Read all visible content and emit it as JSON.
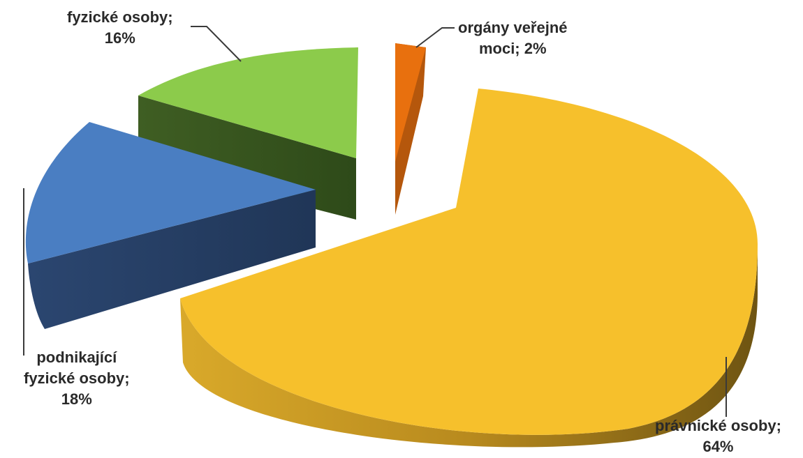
{
  "chart_data": {
    "type": "pie",
    "variant": "3d-exploded",
    "slices": [
      {
        "label_line1": "právnické osoby;",
        "label_line2": "64%",
        "value": 64,
        "color": "#F6C02C"
      },
      {
        "label_line1": "orgány veřejné",
        "label_line2": "moci; 2%",
        "value": 2,
        "color": "#E8700E"
      },
      {
        "label_line1": "fyzické osoby;",
        "label_line2": "16%",
        "value": 16,
        "color": "#8CCB4B"
      },
      {
        "label_line1": "podnikající",
        "label_line2": "fyzické osoby;",
        "label_line3": "18%",
        "value": 18,
        "color": "#4A7EC2"
      }
    ],
    "legend": "none",
    "data_labels": "outside with leader lines"
  }
}
